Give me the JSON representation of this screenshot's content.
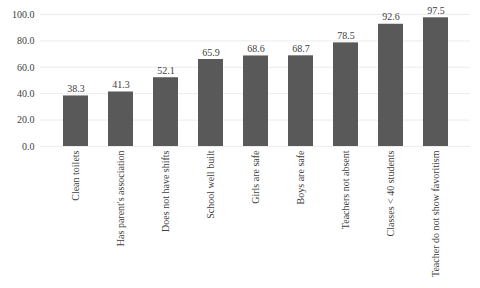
{
  "chart_data": {
    "type": "bar",
    "categories": [
      "Clean toilets",
      "Has parent's association",
      "Does not have shifts",
      "School well built",
      "Girls are safe",
      "Boys are safe",
      "Teachers not absent",
      "Classes < 40 students",
      "Teacher do not show favoritism"
    ],
    "values": [
      38.3,
      41.3,
      52.1,
      65.9,
      68.6,
      68.7,
      78.5,
      92.6,
      97.5
    ],
    "value_labels": [
      "38.3",
      "41.3",
      "52.1",
      "65.9",
      "68.6",
      "68.7",
      "78.5",
      "92.6",
      "97.5"
    ],
    "color": "#595959",
    "ylim": [
      0,
      100
    ],
    "yticks": [
      {
        "value": 0,
        "label": "0.0"
      },
      {
        "value": 20,
        "label": "20.0"
      },
      {
        "value": 40,
        "label": "40.0"
      },
      {
        "value": 60,
        "label": "60.0"
      },
      {
        "value": 80,
        "label": "80.0"
      },
      {
        "value": 100,
        "label": "100.0"
      }
    ],
    "grid": true,
    "data_labels": true
  }
}
